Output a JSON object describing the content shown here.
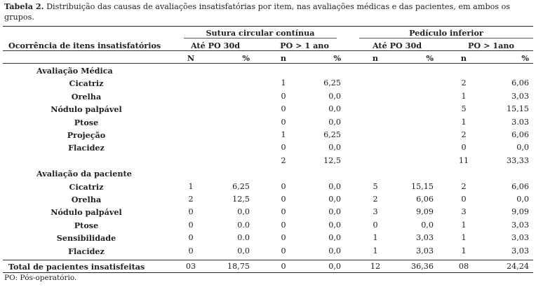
{
  "caption": {
    "label": "Tabela 2.",
    "text": " Distribuição das causas de avaliações insatisfatórias por item, nas avaliações médicas e das pacientes, em ambos os grupos."
  },
  "header": {
    "row_header": "Ocorrência de itens insatisfatórios",
    "group1": "Sutura circular contínua",
    "group2": "Pedículo inferior",
    "periods": [
      "Até PO 30d",
      "PO > 1 ano",
      "Até PO 30d",
      "PO > 1ano"
    ],
    "units": [
      "N",
      "%",
      "n",
      "%",
      "n",
      "%",
      "n",
      "%"
    ]
  },
  "sections": [
    {
      "title": "Avaliação Médica",
      "rows": [
        {
          "label": "Cicatriz",
          "v": [
            "",
            "",
            "1",
            "6,25",
            "",
            "",
            "2",
            "6,06"
          ]
        },
        {
          "label": "Orelha",
          "v": [
            "",
            "",
            "0",
            "0,0",
            "",
            "",
            "1",
            "3,03"
          ]
        },
        {
          "label": "Nódulo palpável",
          "v": [
            "",
            "",
            "0",
            "0,0",
            "",
            "",
            "5",
            "15,15"
          ]
        },
        {
          "label": "Ptose",
          "v": [
            "",
            "",
            "0",
            "0,0",
            "",
            "",
            "1",
            "3.03"
          ]
        },
        {
          "label": "Projeção",
          "v": [
            "",
            "",
            "1",
            "6,25",
            "",
            "",
            "2",
            "6,06"
          ]
        },
        {
          "label": "Flacidez",
          "v": [
            "",
            "",
            "0",
            "0,0",
            "",
            "",
            "0",
            "0,0"
          ]
        },
        {
          "label": "",
          "v": [
            "",
            "",
            "2",
            "12,5",
            "",
            "",
            "11",
            "33,33"
          ]
        }
      ]
    },
    {
      "title": "Avaliação da paciente",
      "rows": [
        {
          "label": "Cicatriz",
          "v": [
            "1",
            "6,25",
            "0",
            "0,0",
            "5",
            "15,15",
            "2",
            "6,06"
          ]
        },
        {
          "label": "Orelha",
          "v": [
            "2",
            "12,5",
            "0",
            "0,0",
            "2",
            "6,06",
            "0",
            "0,0"
          ]
        },
        {
          "label": "Nódulo palpável",
          "v": [
            "0",
            "0,0",
            "0",
            "0,0",
            "3",
            "9,09",
            "3",
            "9,09"
          ]
        },
        {
          "label": "Ptose",
          "v": [
            "0",
            "0.0",
            "0",
            "0,0",
            "0",
            "0,0",
            "1",
            "3,03"
          ]
        },
        {
          "label": "Sensibilidade",
          "v": [
            "0",
            "0.0",
            "0",
            "0,0",
            "1",
            "3,03",
            "1",
            "3,03"
          ]
        },
        {
          "label": "Flacidez",
          "v": [
            "0",
            "0,0",
            "0",
            "0,0",
            "1",
            "3,03",
            "1",
            "3,03"
          ]
        }
      ]
    }
  ],
  "total": {
    "label": "Total de pacientes insatisfeitas",
    "v": [
      "03",
      "18,75",
      "0",
      "0,0",
      "12",
      "36,36",
      "08",
      "24,24"
    ]
  },
  "footnote": "PO: Pós-operatório."
}
